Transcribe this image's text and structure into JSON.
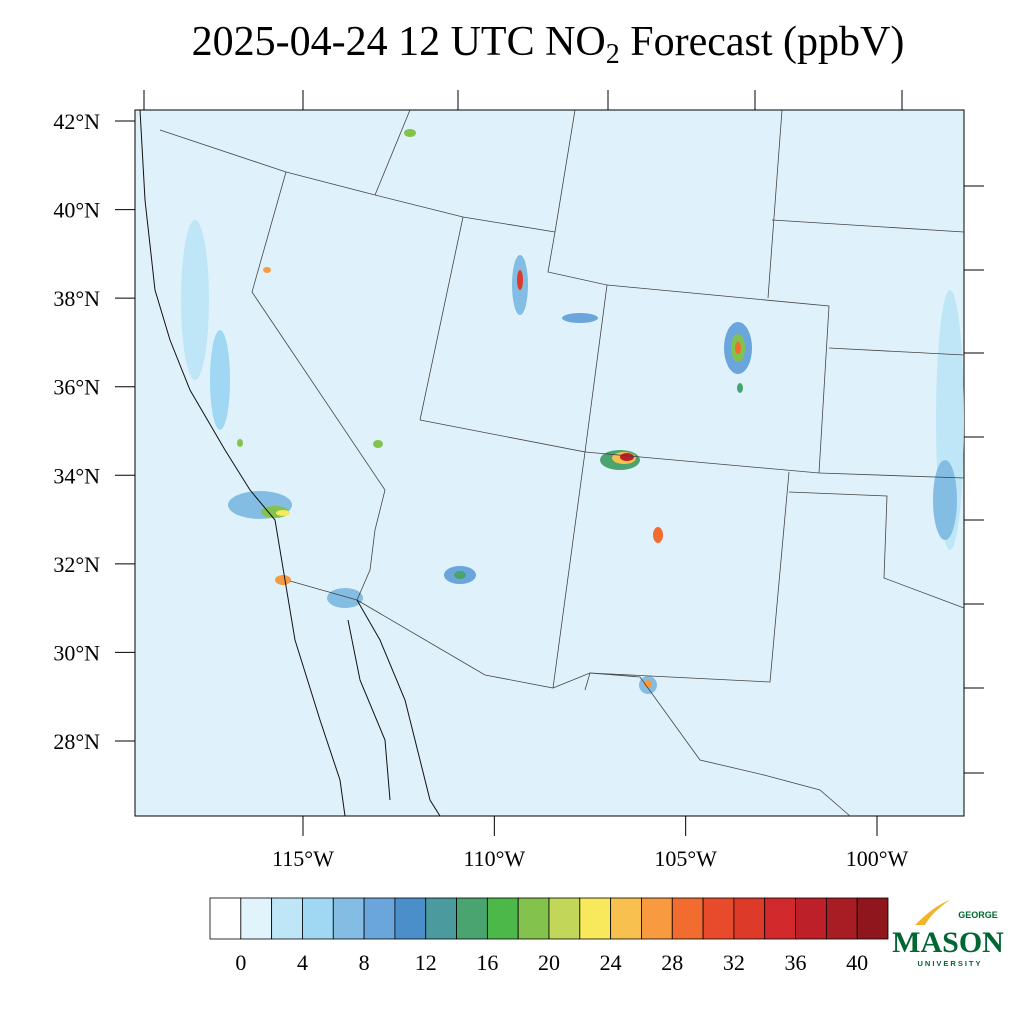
{
  "title": {
    "before": "2025-04-24 12 UTC NO",
    "subscript": "2",
    "after": " Forecast (ppbV)"
  },
  "map": {
    "lat_ticks": [
      {
        "value": 42,
        "label": "42°N"
      },
      {
        "value": 40,
        "label": "40°N"
      },
      {
        "value": 38,
        "label": "38°N"
      },
      {
        "value": 36,
        "label": "36°N"
      },
      {
        "value": 34,
        "label": "34°N"
      },
      {
        "value": 32,
        "label": "32°N"
      },
      {
        "value": 30,
        "label": "30°N"
      },
      {
        "value": 28,
        "label": "28°N"
      }
    ],
    "lon_ticks": [
      {
        "value": -115,
        "label": "115°W"
      },
      {
        "value": -110,
        "label": "110°W"
      },
      {
        "value": -105,
        "label": "105°W"
      },
      {
        "value": -100,
        "label": "100°W"
      }
    ]
  },
  "colorbar": {
    "range": [
      -2,
      42
    ],
    "ticks": [
      0,
      4,
      8,
      12,
      16,
      20,
      24,
      28,
      32,
      36,
      40
    ],
    "colors": [
      "#ffffff",
      "#e1f3fb",
      "#bfe6f7",
      "#a0d8f4",
      "#84bde3",
      "#6aa6db",
      "#4a8fca",
      "#4a9a9e",
      "#4aa470",
      "#4cb84a",
      "#84c24e",
      "#c2d65a",
      "#f7e85c",
      "#f8c04e",
      "#f79a40",
      "#f26b2f",
      "#e84a2c",
      "#de3a2a",
      "#d22a2c",
      "#bd2028",
      "#a81d24",
      "#8e161c"
    ]
  },
  "logo": {
    "top": "GEORGE",
    "main": "MASON",
    "bottom": "UNIVERSITY"
  }
}
